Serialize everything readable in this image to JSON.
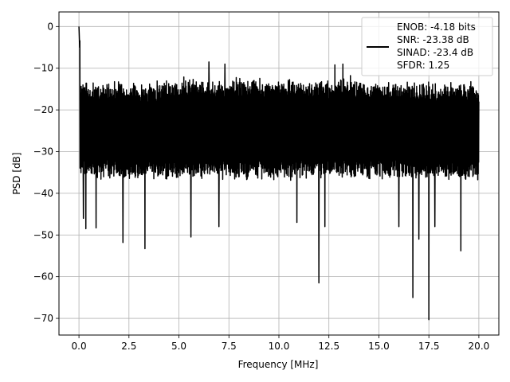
{
  "chart_data": {
    "type": "line",
    "title": "",
    "xlabel": "Frequency [MHz]",
    "ylabel": "PSD [dB]",
    "xlim": [
      -1.0,
      21.0
    ],
    "ylim": [
      -74.0,
      3.5
    ],
    "xticks": [
      0.0,
      2.5,
      5.0,
      7.5,
      10.0,
      12.5,
      15.0,
      17.5,
      20.0
    ],
    "xtick_labels": [
      "0.0",
      "2.5",
      "5.0",
      "7.5",
      "10.0",
      "12.5",
      "15.0",
      "17.5",
      "20.0"
    ],
    "yticks": [
      0,
      -10,
      -20,
      -30,
      -40,
      -50,
      -60,
      -70
    ],
    "ytick_labels": [
      "0",
      "−10",
      "−20",
      "−30",
      "−40",
      "−50",
      "−60",
      "−70"
    ],
    "grid": true,
    "legend": {
      "location": "top-right",
      "entries": [
        "ENOB: -4.18 bits",
        "SNR: -23.38 dB",
        "SINAD: -23.4 dB",
        "SFDR: 1.25"
      ]
    },
    "series": [
      {
        "color": "#000000",
        "noise_floor_band_db": [
          -37,
          -13
        ],
        "peak": {
          "x": 0.0,
          "y": 0.0
        },
        "deep_dips": [
          {
            "x": 0.22,
            "y": -46
          },
          {
            "x": 0.35,
            "y": -48.5
          },
          {
            "x": 0.85,
            "y": -48.3
          },
          {
            "x": 2.2,
            "y": -51.8
          },
          {
            "x": 3.3,
            "y": -53.3
          },
          {
            "x": 5.6,
            "y": -50.5
          },
          {
            "x": 7.0,
            "y": -48.0
          },
          {
            "x": 10.9,
            "y": -47.0
          },
          {
            "x": 12.0,
            "y": -61.5
          },
          {
            "x": 12.3,
            "y": -48.0
          },
          {
            "x": 16.0,
            "y": -48.0
          },
          {
            "x": 16.7,
            "y": -65.0
          },
          {
            "x": 17.0,
            "y": -51.0
          },
          {
            "x": 17.5,
            "y": -70.3
          },
          {
            "x": 17.8,
            "y": -48.0
          },
          {
            "x": 19.1,
            "y": -53.8
          }
        ],
        "highest_peaks": [
          {
            "x": 6.5,
            "y": -8.5
          },
          {
            "x": 7.3,
            "y": -9.0
          },
          {
            "x": 12.8,
            "y": -9.2
          },
          {
            "x": 13.2,
            "y": -9.0
          }
        ]
      }
    ]
  }
}
